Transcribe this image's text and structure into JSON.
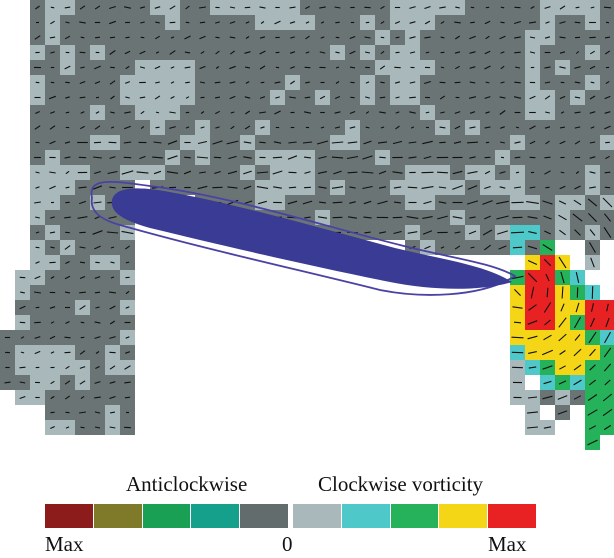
{
  "legend": {
    "left_title": "Anticlockwise",
    "right_title": "Clockwise vorticity",
    "min_label": "Max",
    "zero_label": "0",
    "max_label": "Max",
    "scale": [
      {
        "name": "anticlockwise-level-5",
        "color": "#8c1c1c"
      },
      {
        "name": "anticlockwise-level-4",
        "color": "#7e7a2a"
      },
      {
        "name": "anticlockwise-level-3",
        "color": "#1aa055"
      },
      {
        "name": "anticlockwise-level-2",
        "color": "#14a08a"
      },
      {
        "name": "anticlockwise-level-1",
        "color": "#626c6c"
      },
      {
        "name": "clockwise-level-1",
        "color": "#a8b8bb"
      },
      {
        "name": "clockwise-level-2",
        "color": "#4ec8c8"
      },
      {
        "name": "clockwise-level-3",
        "color": "#25b25a"
      },
      {
        "name": "clockwise-level-4",
        "color": "#f5d617"
      },
      {
        "name": "clockwise-level-5",
        "color": "#e82222"
      }
    ]
  },
  "colors": {
    "dark_gray": "#6a7474",
    "light_gray": "#a8b8bb",
    "body_fill": "#3a3b95",
    "body_outline": "#4a42a5",
    "vector": "#111111",
    "background": "#ffffff"
  }
}
